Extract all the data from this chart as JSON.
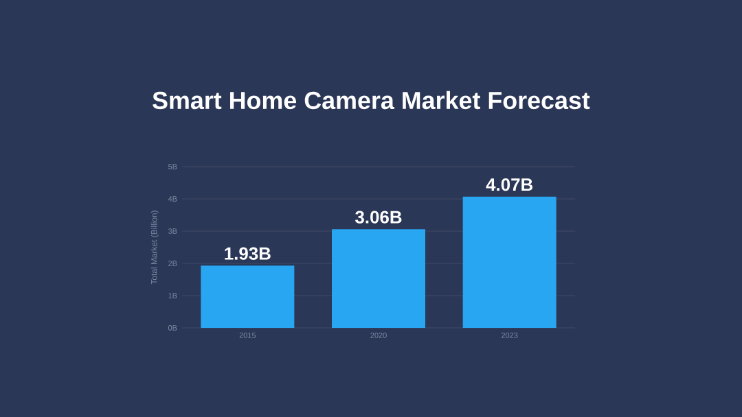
{
  "chart_data": {
    "type": "bar",
    "title": "Smart Home Camera Market Forecast",
    "ylabel": "Total Market (Billion)",
    "categories": [
      "2015",
      "2020",
      "2023"
    ],
    "values": [
      1.93,
      3.06,
      4.07
    ],
    "value_labels": [
      "1.93B",
      "3.06B",
      "4.07B"
    ],
    "color": "#29a6f2",
    "ylim": [
      0,
      5
    ],
    "yticks": [
      {
        "value": 0,
        "label": "0B"
      },
      {
        "value": 1,
        "label": "1B"
      },
      {
        "value": 2,
        "label": "2B"
      },
      {
        "value": 3,
        "label": "3B"
      },
      {
        "value": 4,
        "label": "4B"
      },
      {
        "value": 5,
        "label": "5B"
      }
    ],
    "grid": "y"
  }
}
